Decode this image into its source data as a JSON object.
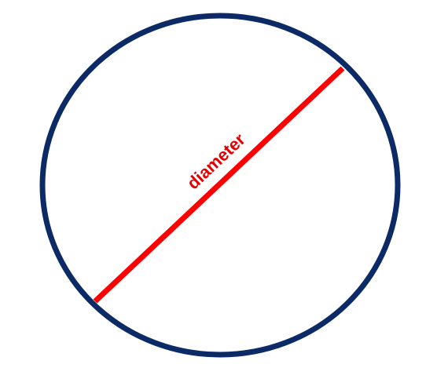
{
  "diagram": {
    "label": "diameter",
    "circle_color": "#0b2a66",
    "diameter_color": "#ff0000",
    "label_color": "#e60000"
  }
}
